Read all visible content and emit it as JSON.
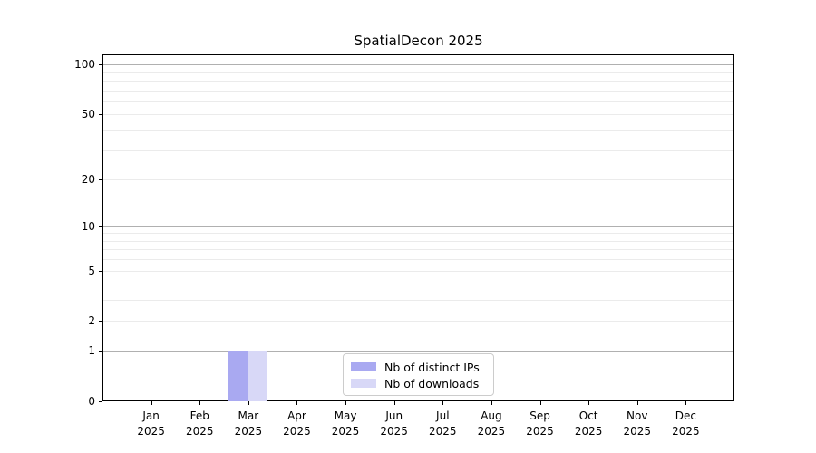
{
  "title": "SpatialDecon 2025",
  "chart_data": {
    "type": "bar",
    "title": "SpatialDecon 2025",
    "categories": [
      "Jan",
      "Feb",
      "Mar",
      "Apr",
      "May",
      "Jun",
      "Jul",
      "Aug",
      "Sep",
      "Oct",
      "Nov",
      "Dec"
    ],
    "category_year": "2025",
    "x_tick_labels": [
      "Jan 2025",
      "Feb 2025",
      "Mar 2025",
      "Apr 2025",
      "May 2025",
      "Jun 2025",
      "Jul 2025",
      "Aug 2025",
      "Sep 2025",
      "Oct 2025",
      "Nov 2025",
      "Dec 2025"
    ],
    "series": [
      {
        "name": "Nb of distinct IPs",
        "color": "#a9a9f1",
        "values": [
          0,
          0,
          1,
          0,
          0,
          0,
          0,
          0,
          0,
          0,
          0,
          0
        ]
      },
      {
        "name": "Nb of downloads",
        "color": "#d8d8f7",
        "values": [
          0,
          0,
          1,
          0,
          0,
          0,
          0,
          0,
          0,
          0,
          0,
          0
        ]
      }
    ],
    "xlabel": "",
    "ylabel": "",
    "y_axis": {
      "scale": "log1p",
      "ticks": [
        0,
        1,
        2,
        5,
        10,
        20,
        50,
        100
      ],
      "major_gridlines": [
        1,
        10,
        100
      ],
      "minor_gridlines": [
        2,
        3,
        4,
        5,
        6,
        7,
        8,
        9,
        20,
        30,
        40,
        50,
        60,
        70,
        80,
        90
      ],
      "ylim": [
        0,
        115
      ]
    },
    "grid": true,
    "legend": {
      "position": "lower center",
      "entries": [
        "Nb of distinct IPs",
        "Nb of downloads"
      ]
    }
  }
}
